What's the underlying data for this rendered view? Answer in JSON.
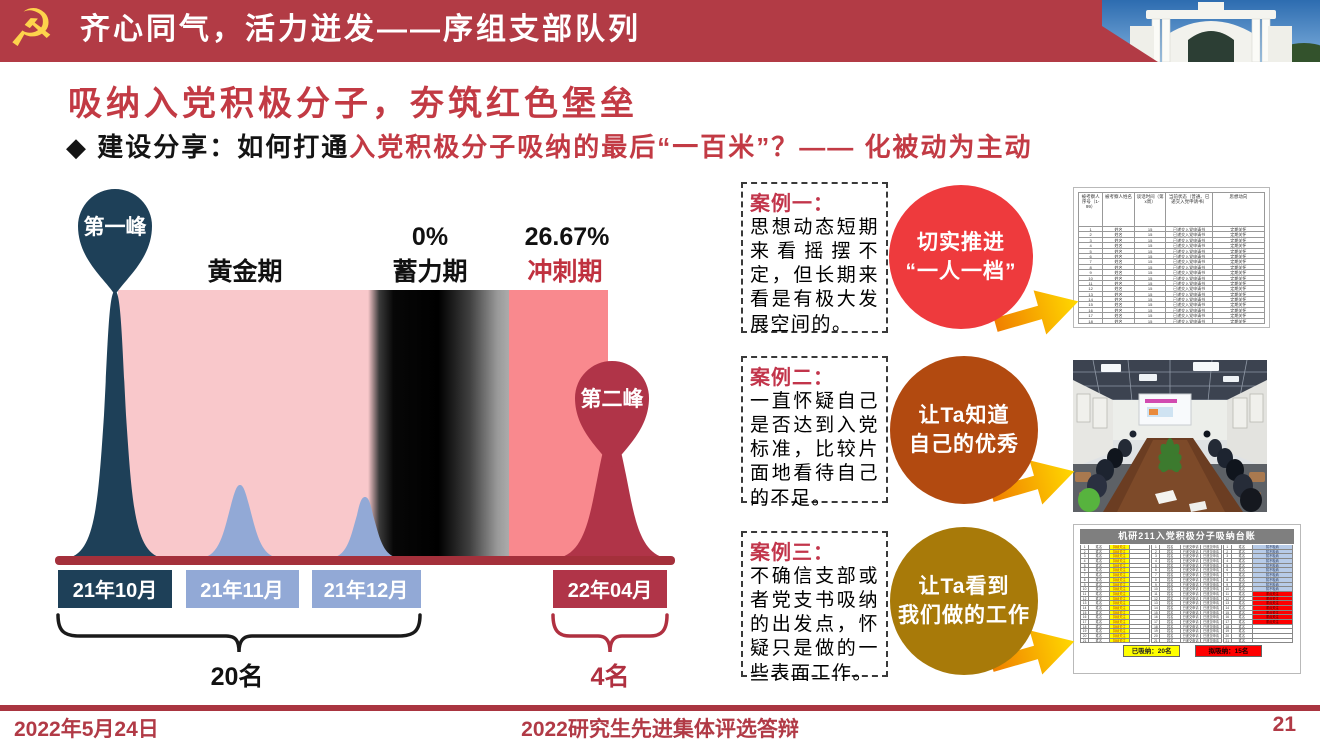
{
  "banner": {
    "title": "齐心同气，活力迸发——序组支部队列",
    "bg_color": "#b23b45",
    "emblem_icon": "hammer-sickle-emblem",
    "photo": "campus-gate-photo"
  },
  "heading": "吸纳入党积极分子，夯筑红色堡垒",
  "subtitle": {
    "black": "◆ 建设分享：如何打通",
    "red": "入党积极分子吸纳的最后“一百米”？—— 化被动为主动"
  },
  "chart": {
    "peak1": "第一峰",
    "peak2": "第二峰",
    "phase1": "黄金期",
    "phase2": "蓄力期",
    "phase3": "冲刺期",
    "pct2": "0%",
    "pct3": "26.67%",
    "month1": "21年10月",
    "month2": "21年11月",
    "month3": "21年12月",
    "month4": "22年04月",
    "count1": "20名",
    "count2": "4名",
    "colors": {
      "navy": "#1e4058",
      "light_blue": "#92a9d6",
      "dark_red": "#b03448",
      "pink": "#f9c8cb",
      "salmon": "#f9898e",
      "baseline": "#a4303b"
    }
  },
  "chart_data": {
    "type": "area",
    "phases": [
      {
        "name": "黄金期",
        "months": [
          "21年10月",
          "21年11月",
          "21年12月"
        ],
        "recruited_label": "20名",
        "rate": null
      },
      {
        "name": "蓄力期",
        "months": [],
        "recruited_label": null,
        "rate": "0%"
      },
      {
        "name": "冲刺期",
        "months": [
          "22年04月"
        ],
        "recruited_label": "4名",
        "rate": "26.67%"
      }
    ],
    "peaks": [
      {
        "name": "第一峰",
        "month": "21年10月",
        "size": "large"
      },
      {
        "name": "第二峰",
        "month": "22年04月",
        "size": "medium"
      }
    ],
    "minor_peaks": [
      "21年11月",
      "21年12月"
    ]
  },
  "cases": [
    {
      "label": "案例一：",
      "text": "思想动态短期来看摇摆不定，但长期来看是有极大发展空间的。",
      "bubble_line1": "切实推进",
      "bubble_line2": "“一人一档”",
      "bubble_color": "#ee3a3d"
    },
    {
      "label": "案例二：",
      "text": "一直怀疑自己是否达到入党标准，比较片面地看待自己的不足。",
      "bubble_line1": "让Ta知道",
      "bubble_line2": "自己的优秀",
      "bubble_color": "#b24a10"
    },
    {
      "label": "案例三：",
      "text": "不确信支部或者党支书吸纳的出发点，怀疑只是做的一些表面工作。",
      "bubble_line1": "让Ta看到",
      "bubble_line2": "我们做的工作",
      "bubble_color": "#a87a09"
    }
  ],
  "images": {
    "roster_table": {
      "headers": [
        "被考察人序号（1-99）",
        "被考察人姓名",
        "谈话时间（第x周）",
        "当前状态（普通、已递交入党申请书）",
        "思想动向"
      ],
      "row_count": 18,
      "name_placeholder": "姓名",
      "repeated_week": "15",
      "repeated_status": "已递交入党申请书",
      "repeated_note": "定期关怀"
    },
    "meeting_photo": "meeting-room-photo",
    "ledger_table": {
      "title": "机研211入党积极分子吸纳台账",
      "row_count": 21,
      "name_placeholder": "姓名",
      "cell_yellow": "持续关注",
      "cell_mid": "已递交申请",
      "cell_blue": "暂不吸纳",
      "cell_red": "重点关注",
      "summary_left": "已吸纳：20名",
      "summary_right": "拟吸纳：15名"
    }
  },
  "footer": {
    "date": "2022年5月24日",
    "center": "2022研究生先进集体评选答辩",
    "page": "21"
  }
}
